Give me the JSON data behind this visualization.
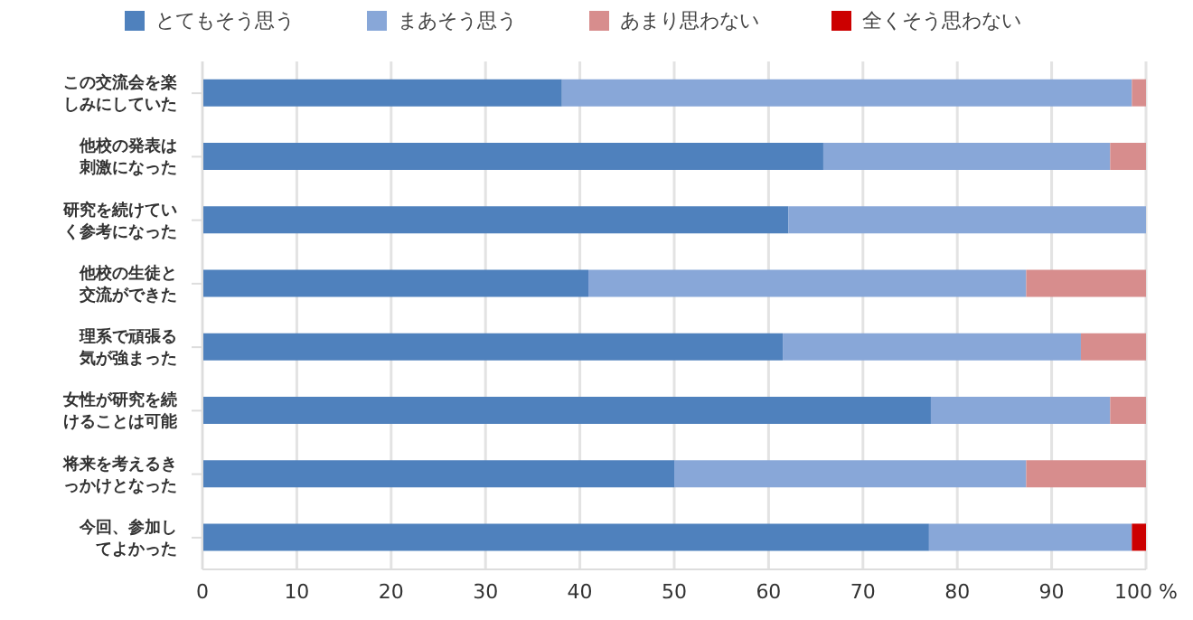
{
  "chart_data": {
    "type": "bar",
    "orientation": "horizontal",
    "stacked": true,
    "categories": [
      "この交流会を楽しみにしていた",
      "他校の発表は刺激になった",
      "研究を続けていく参考になった",
      "他校の生徒と交流ができた",
      "理系で頑張る気が強まった",
      "女性が研究を続けることは可能",
      "将来を考えるきっかけとなった",
      "今回、参加してよかった"
    ],
    "series": [
      {
        "name": "とてもそう思う",
        "color": "#4f81bd",
        "values": [
          38.1,
          65.8,
          62.1,
          40.9,
          61.5,
          77.2,
          50.0,
          77.0
        ]
      },
      {
        "name": "まあそう思う",
        "color": "#88a7d8",
        "values": [
          60.4,
          30.4,
          37.9,
          46.4,
          31.6,
          19.0,
          37.3,
          21.5
        ]
      },
      {
        "name": "あまり思わない",
        "color": "#d78d8d",
        "values": [
          1.5,
          3.8,
          0,
          12.7,
          6.9,
          3.8,
          12.7,
          0
        ]
      },
      {
        "name": "全くそう思わない",
        "color": "#cc0000",
        "values": [
          0,
          0,
          0,
          0,
          0,
          0,
          0,
          1.5
        ]
      }
    ],
    "xlim": [
      0,
      100
    ],
    "xticks": [
      0,
      10,
      20,
      30,
      40,
      50,
      60,
      70,
      80,
      90,
      {
        "value": 100,
        "label": "100 %"
      }
    ],
    "grid": "x",
    "legend": "top"
  }
}
